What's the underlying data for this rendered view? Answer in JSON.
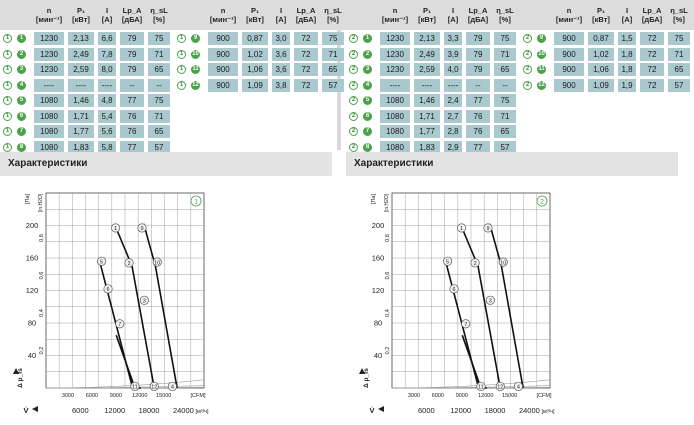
{
  "colors": {
    "cell": "#a9c9cf",
    "header": "#dcdcdc",
    "accent": "#4aa34a",
    "section": "#e3e3e3"
  },
  "headers": [
    {
      "top": "n",
      "bot": "[мин⁻¹]"
    },
    {
      "top": "P₁",
      "bot": "[кВт]"
    },
    {
      "top": "I",
      "bot": "[A]"
    },
    {
      "top": "Lp_A",
      "bot": "[дБА]"
    },
    {
      "top": "η_sL",
      "bot": "[%]"
    }
  ],
  "section_title": "Характеристики",
  "panels": [
    {
      "badge": "1",
      "rows_left": [
        {
          "id": "1",
          "v": [
            "1230",
            "2,13",
            "6,6",
            "79",
            "75"
          ]
        },
        {
          "id": "2",
          "v": [
            "1230",
            "2,49",
            "7,8",
            "79",
            "71"
          ]
        },
        {
          "id": "3",
          "v": [
            "1230",
            "2,59",
            "8,0",
            "79",
            "65"
          ]
        },
        {
          "id": "4",
          "v": [
            "----",
            "----",
            "----",
            "--",
            "--"
          ]
        },
        {
          "id": "5",
          "v": [
            "1080",
            "1,46",
            "4,8",
            "77",
            "75"
          ]
        },
        {
          "id": "6",
          "v": [
            "1080",
            "1,71",
            "5,4",
            "76",
            "71"
          ]
        },
        {
          "id": "7",
          "v": [
            "1080",
            "1,77",
            "5,6",
            "76",
            "65"
          ]
        },
        {
          "id": "8",
          "v": [
            "1080",
            "1,83",
            "5,8",
            "77",
            "57"
          ]
        }
      ],
      "rows_right": [
        {
          "id": "9",
          "v": [
            "900",
            "0,87",
            "3,0",
            "72",
            "75"
          ]
        },
        {
          "id": "10",
          "v": [
            "900",
            "1,02",
            "3,6",
            "72",
            "71"
          ]
        },
        {
          "id": "11",
          "v": [
            "900",
            "1,06",
            "3,6",
            "72",
            "65"
          ]
        },
        {
          "id": "12",
          "v": [
            "900",
            "1,09",
            "3,8",
            "72",
            "57"
          ]
        }
      ]
    },
    {
      "badge": "2",
      "rows_left": [
        {
          "id": "1",
          "v": [
            "1230",
            "2,13",
            "3,3",
            "79",
            "75"
          ]
        },
        {
          "id": "2",
          "v": [
            "1230",
            "2,49",
            "3,9",
            "79",
            "71"
          ]
        },
        {
          "id": "3",
          "v": [
            "1230",
            "2,59",
            "4,0",
            "79",
            "65"
          ]
        },
        {
          "id": "4",
          "v": [
            "----",
            "----",
            "----",
            "--",
            "--"
          ]
        },
        {
          "id": "5",
          "v": [
            "1080",
            "1,46",
            "2,4",
            "77",
            "75"
          ]
        },
        {
          "id": "6",
          "v": [
            "1080",
            "1,71",
            "2,7",
            "76",
            "71"
          ]
        },
        {
          "id": "7",
          "v": [
            "1080",
            "1,77",
            "2,8",
            "76",
            "65"
          ]
        },
        {
          "id": "8",
          "v": [
            "1080",
            "1,83",
            "2,9",
            "77",
            "57"
          ]
        }
      ],
      "rows_right": [
        {
          "id": "9",
          "v": [
            "900",
            "0,87",
            "1,5",
            "72",
            "75"
          ]
        },
        {
          "id": "10",
          "v": [
            "900",
            "1,02",
            "1,8",
            "72",
            "71"
          ]
        },
        {
          "id": "11",
          "v": [
            "900",
            "1,06",
            "1,8",
            "72",
            "65"
          ]
        },
        {
          "id": "12",
          "v": [
            "900",
            "1,09",
            "1,9",
            "72",
            "57"
          ]
        }
      ]
    }
  ],
  "chart_data": [
    {
      "type": "line",
      "badge": "1",
      "ylabel_top": "[Па]",
      "ylabel_top2": "[in.H2O]",
      "y_ticks": [
        40,
        80,
        120,
        160,
        200
      ],
      "y2_ticks": [
        "0,2",
        "0,4",
        "0,6",
        "0,8"
      ],
      "x_ticks_m3h": [
        "6000",
        "12000",
        "18000",
        "24000"
      ],
      "x_ticks_cfm": [
        "3000",
        "6000",
        "9000",
        "12000",
        "15000"
      ],
      "x_unit_m3h": "[м³/ч]",
      "x_unit_cfm": "[CFM]",
      "ylabel": "Δ p_fs",
      "xlabel": "V̇",
      "xlim": [
        0,
        27000
      ],
      "ylim": [
        0,
        240
      ],
      "series": [
        {
          "x": [
            11800,
            14700,
            18500
          ],
          "y": [
            200,
            150,
            0
          ]
        },
        {
          "x": [
            16700,
            18700,
            22400
          ],
          "y": [
            202,
            150,
            0
          ]
        },
        {
          "x": [
            9200,
            10900,
            14800
          ],
          "y": [
            155,
            108,
            0
          ]
        },
        {
          "x": [
            12000,
            15200,
            16200
          ],
          "y": [
            65,
            0,
            0
          ]
        }
      ],
      "points": [
        {
          "label": "1",
          "x": 11900,
          "y": 197
        },
        {
          "label": "2",
          "x": 14200,
          "y": 154
        },
        {
          "label": "3",
          "x": 16800,
          "y": 108
        },
        {
          "label": "5",
          "x": 9500,
          "y": 156
        },
        {
          "label": "6",
          "x": 10600,
          "y": 122
        },
        {
          "label": "7",
          "x": 12600,
          "y": 79
        },
        {
          "label": "9",
          "x": 16400,
          "y": 197
        },
        {
          "label": "10",
          "x": 19000,
          "y": 155
        },
        {
          "label": "11",
          "x": 15200,
          "y": 2
        },
        {
          "label": "12",
          "x": 18500,
          "y": 2
        },
        {
          "label": "4",
          "x": 21600,
          "y": 2
        }
      ]
    },
    {
      "type": "line",
      "badge": "2",
      "ylabel_top": "[Па]",
      "ylabel_top2": "[in.H2O]",
      "y_ticks": [
        40,
        80,
        120,
        160,
        200
      ],
      "y2_ticks": [
        "0,2",
        "0,4",
        "0,6",
        "0,8"
      ],
      "x_ticks_m3h": [
        "6000",
        "12000",
        "18000",
        "24000"
      ],
      "x_ticks_cfm": [
        "3000",
        "6000",
        "9000",
        "12000",
        "15000"
      ],
      "x_unit_m3h": "[м³/ч]",
      "x_unit_cfm": "[CFM]",
      "ylabel": "Δ p_fs",
      "xlabel": "V̇",
      "xlim": [
        0,
        27000
      ],
      "ylim": [
        0,
        240
      ],
      "series": [
        {
          "x": [
            11800,
            14700,
            18500
          ],
          "y": [
            200,
            150,
            0
          ]
        },
        {
          "x": [
            16700,
            18700,
            22400
          ],
          "y": [
            202,
            150,
            0
          ]
        },
        {
          "x": [
            9200,
            10900,
            14800
          ],
          "y": [
            155,
            108,
            0
          ]
        },
        {
          "x": [
            12000,
            15200,
            16200
          ],
          "y": [
            65,
            0,
            0
          ]
        }
      ],
      "points": [
        {
          "label": "1",
          "x": 11900,
          "y": 197
        },
        {
          "label": "2",
          "x": 14200,
          "y": 154
        },
        {
          "label": "3",
          "x": 16800,
          "y": 108
        },
        {
          "label": "5",
          "x": 9500,
          "y": 156
        },
        {
          "label": "6",
          "x": 10600,
          "y": 122
        },
        {
          "label": "7",
          "x": 12600,
          "y": 79
        },
        {
          "label": "9",
          "x": 16400,
          "y": 197
        },
        {
          "label": "10",
          "x": 19000,
          "y": 155
        },
        {
          "label": "11",
          "x": 15200,
          "y": 2
        },
        {
          "label": "12",
          "x": 18500,
          "y": 2
        },
        {
          "label": "4",
          "x": 21600,
          "y": 2
        }
      ]
    }
  ]
}
